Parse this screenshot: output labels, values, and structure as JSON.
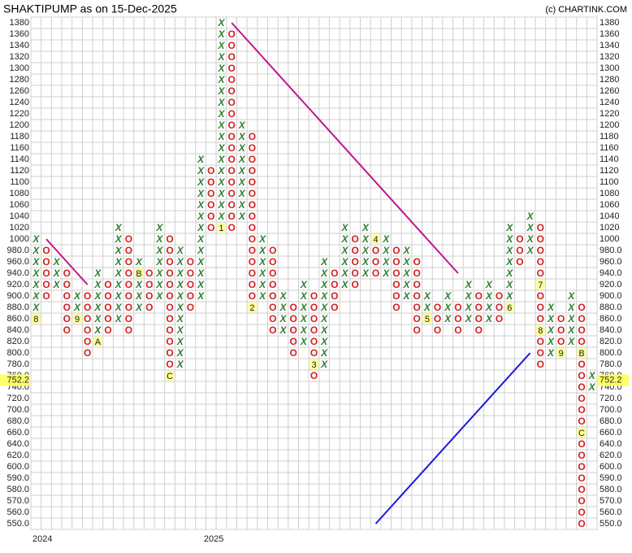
{
  "chart_data": {
    "type": "point-figure",
    "title": "SHAKTIPUMP as on 15-Dec-2025",
    "credit": "(c) CHARTINK.COM",
    "yticks": [
      1380,
      1360,
      1340,
      1320,
      1300,
      1280,
      1260,
      1240,
      1220,
      1200,
      1180,
      1160,
      1140,
      1120,
      1100,
      1080,
      1060,
      1040,
      1020,
      1000,
      {
        "value": 980,
        "label": "980.0"
      },
      {
        "value": 960,
        "label": "960.0"
      },
      {
        "value": 940,
        "label": "940.0"
      },
      {
        "value": 920,
        "label": "920.0"
      },
      {
        "value": 900,
        "label": "900.0"
      },
      {
        "value": 880,
        "label": "880.0"
      },
      {
        "value": 860,
        "label": "860.0"
      },
      {
        "value": 840,
        "label": "840.0"
      },
      {
        "value": 820,
        "label": "820.0"
      },
      {
        "value": 800,
        "label": "800.0"
      },
      {
        "value": 780,
        "label": "780.0"
      },
      {
        "value": 760,
        "label": "760.0"
      },
      {
        "value": 740,
        "label": "740.0"
      },
      {
        "value": 720,
        "label": "720.0"
      },
      {
        "value": 700,
        "label": "700.0"
      },
      {
        "value": 680,
        "label": "680.0"
      },
      {
        "value": 660,
        "label": "660.0"
      },
      {
        "value": 640,
        "label": "640.0"
      },
      {
        "value": 620,
        "label": "620.0"
      },
      {
        "value": 600,
        "label": "600.0"
      },
      {
        "value": 590,
        "label": "590.0"
      },
      {
        "value": 580,
        "label": "580.0"
      },
      {
        "value": 570,
        "label": "570.0"
      },
      {
        "value": 560,
        "label": "560.0"
      },
      {
        "value": 550,
        "label": "550.0"
      }
    ],
    "last_price": 752.2,
    "year_labels": [
      "2024",
      "2025"
    ],
    "x_color": "#2e7d32",
    "o_color": "#d32020",
    "columns": [
      {
        "box": "X",
        "low": 860,
        "high": 1000,
        "markers": [
          {
            "value": 860,
            "label": "8"
          }
        ]
      },
      {
        "box": "O",
        "low": 900,
        "high": 980
      },
      {
        "box": "X",
        "low": 920,
        "high": 960
      },
      {
        "box": "O",
        "low": 840,
        "high": 940
      },
      {
        "box": "X",
        "low": 860,
        "high": 900,
        "markers": [
          {
            "value": 860,
            "label": "9"
          }
        ]
      },
      {
        "box": "O",
        "low": 800,
        "high": 900
      },
      {
        "box": "X",
        "low": 820,
        "high": 940,
        "markers": [
          {
            "value": 820,
            "label": "A"
          }
        ]
      },
      {
        "box": "O",
        "low": 840,
        "high": 920
      },
      {
        "box": "X",
        "low": 860,
        "high": 1020
      },
      {
        "box": "O",
        "low": 840,
        "high": 1000
      },
      {
        "box": "X",
        "low": 880,
        "high": 960,
        "markers": [
          {
            "value": 940,
            "label": "B"
          }
        ]
      },
      {
        "box": "O",
        "low": 880,
        "high": 940
      },
      {
        "box": "X",
        "low": 900,
        "high": 1020
      },
      {
        "box": "O",
        "low": 760,
        "high": 1000,
        "markers": [
          {
            "value": 760,
            "label": "C"
          }
        ]
      },
      {
        "box": "X",
        "low": 780,
        "high": 980
      },
      {
        "box": "O",
        "low": 880,
        "high": 960
      },
      {
        "box": "X",
        "low": 900,
        "high": 1140
      },
      {
        "box": "O",
        "low": 1020,
        "high": 1120
      },
      {
        "box": "X",
        "low": 1020,
        "high": 1380,
        "markers": [
          {
            "value": 1020,
            "label": "1"
          }
        ]
      },
      {
        "box": "O",
        "low": 1020,
        "high": 1360
      },
      {
        "box": "X",
        "low": 1040,
        "high": 1200
      },
      {
        "box": "O",
        "low": 880,
        "high": 1180,
        "markers": [
          {
            "value": 880,
            "label": "2"
          }
        ]
      },
      {
        "box": "X",
        "low": 900,
        "high": 1000
      },
      {
        "box": "O",
        "low": 840,
        "high": 980
      },
      {
        "box": "X",
        "low": 840,
        "high": 900
      },
      {
        "box": "O",
        "low": 800,
        "high": 880
      },
      {
        "box": "X",
        "low": 820,
        "high": 920
      },
      {
        "box": "O",
        "low": 760,
        "high": 900,
        "markers": [
          {
            "value": 780,
            "label": "3"
          }
        ]
      },
      {
        "box": "X",
        "low": 780,
        "high": 960
      },
      {
        "box": "O",
        "low": 880,
        "high": 940
      },
      {
        "box": "X",
        "low": 920,
        "high": 1020
      },
      {
        "box": "O",
        "low": 920,
        "high": 1000
      },
      {
        "box": "X",
        "low": 940,
        "high": 1020
      },
      {
        "box": "O",
        "low": 940,
        "high": 1000,
        "markers": [
          {
            "value": 1000,
            "label": "4"
          }
        ]
      },
      {
        "box": "X",
        "low": 940,
        "high": 1000
      },
      {
        "box": "O",
        "low": 880,
        "high": 980
      },
      {
        "box": "X",
        "low": 900,
        "high": 980
      },
      {
        "box": "O",
        "low": 840,
        "high": 960
      },
      {
        "box": "X",
        "low": 860,
        "high": 900,
        "markers": [
          {
            "value": 860,
            "label": "5"
          }
        ]
      },
      {
        "box": "O",
        "low": 840,
        "high": 880
      },
      {
        "box": "X",
        "low": 860,
        "high": 900
      },
      {
        "box": "O",
        "low": 840,
        "high": 880
      },
      {
        "box": "X",
        "low": 860,
        "high": 920
      },
      {
        "box": "O",
        "low": 840,
        "high": 900
      },
      {
        "box": "X",
        "low": 860,
        "high": 920
      },
      {
        "box": "O",
        "low": 860,
        "high": 900
      },
      {
        "box": "X",
        "low": 880,
        "high": 1020,
        "markers": [
          {
            "value": 880,
            "label": "6"
          }
        ]
      },
      {
        "box": "O",
        "low": 960,
        "high": 1000
      },
      {
        "box": "X",
        "low": 980,
        "high": 1040
      },
      {
        "box": "O",
        "low": 780,
        "high": 1020,
        "markers": [
          {
            "value": 920,
            "label": "7"
          },
          {
            "value": 840,
            "label": "8"
          }
        ]
      },
      {
        "box": "X",
        "low": 800,
        "high": 880
      },
      {
        "box": "O",
        "low": 800,
        "high": 860,
        "markers": [
          {
            "value": 800,
            "label": "9"
          }
        ]
      },
      {
        "box": "X",
        "low": 820,
        "high": 900
      },
      {
        "box": "O",
        "low": 550,
        "high": 880,
        "markers": [
          {
            "value": 800,
            "label": "B"
          },
          {
            "value": 660,
            "label": "C"
          }
        ]
      },
      {
        "box": "X",
        "low": 740,
        "high": 760
      }
    ],
    "trendlines": [
      {
        "color": "#c0168c",
        "from": [
          1,
          1000
        ],
        "to": [
          5,
          920
        ]
      },
      {
        "color": "#c0168c",
        "from": [
          19,
          1380
        ],
        "to": [
          41,
          940
        ]
      },
      {
        "color": "#1a1ae0",
        "from": [
          33,
          550
        ],
        "to": [
          48,
          800
        ]
      }
    ]
  }
}
